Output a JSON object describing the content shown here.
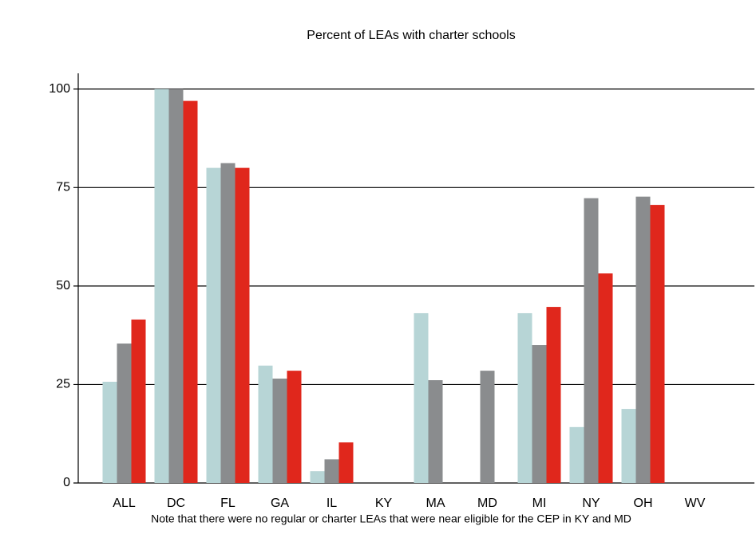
{
  "chart_data": {
    "type": "bar",
    "title": "Percent of LEAs with charter schools",
    "note": "Note that there were no regular or charter LEAs that were near eligible for the CEP in KY and MD",
    "categories": [
      "ALL",
      "DC",
      "FL",
      "GA",
      "IL",
      "KY",
      "MA",
      "MD",
      "MI",
      "NY",
      "OH",
      "WV"
    ],
    "series": [
      {
        "color": "#b7d5d6",
        "values": [
          25.7,
          100,
          80,
          29.8,
          3,
          null,
          43.1,
          null,
          43.1,
          14.2,
          18.8,
          null
        ]
      },
      {
        "color": "#8a8c8e",
        "values": [
          35.4,
          100,
          81.2,
          26.5,
          6,
          null,
          26.1,
          28.5,
          35,
          72.3,
          72.7,
          null
        ]
      },
      {
        "color": "#e0271c",
        "values": [
          41.5,
          97,
          80,
          28.5,
          10.3,
          null,
          null,
          null,
          44.7,
          53.2,
          70.6,
          null
        ]
      }
    ],
    "ylim": [
      0,
      104
    ],
    "yticks": [
      0,
      25,
      50,
      75,
      100
    ],
    "grid": true
  }
}
